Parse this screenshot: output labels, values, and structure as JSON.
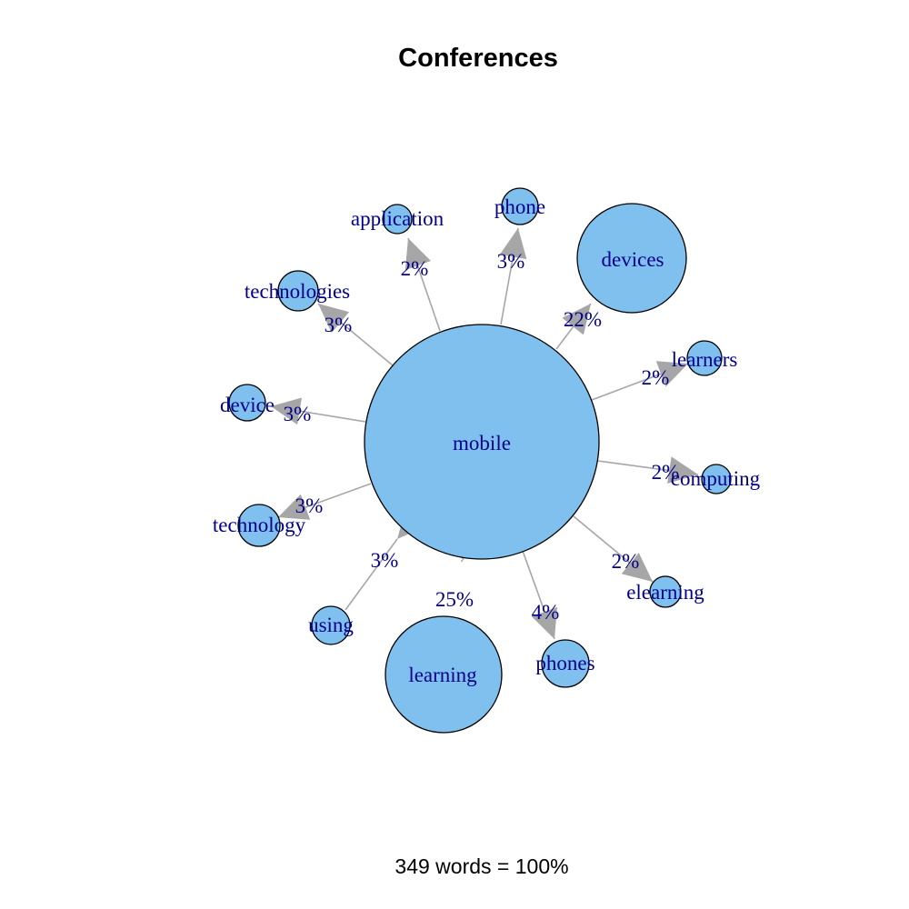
{
  "title": "Conferences",
  "footer": "349 words = 100%",
  "colors": {
    "node_fill": "#80c0ee",
    "node_stroke": "#000000",
    "edge": "#a6a6a6",
    "label": "#00008b"
  },
  "center": {
    "id": "mobile",
    "label": "mobile"
  },
  "nodes": [
    {
      "id": "application",
      "label": "application",
      "percent": "2%"
    },
    {
      "id": "phone",
      "label": "phone",
      "percent": "3%"
    },
    {
      "id": "devices",
      "label": "devices",
      "percent": "22%"
    },
    {
      "id": "learners",
      "label": "learners",
      "percent": "2%"
    },
    {
      "id": "computing",
      "label": "computing",
      "percent": "2%"
    },
    {
      "id": "elearning",
      "label": "elearning",
      "percent": "2%"
    },
    {
      "id": "phones",
      "label": "phones",
      "percent": "4%"
    },
    {
      "id": "learning",
      "label": "learning",
      "percent": "25%"
    },
    {
      "id": "using",
      "label": "using",
      "percent": "3%"
    },
    {
      "id": "technology",
      "label": "technology",
      "percent": "3%"
    },
    {
      "id": "device",
      "label": "device",
      "percent": "3%"
    },
    {
      "id": "technologies",
      "label": "technologies",
      "percent": "3%"
    }
  ]
}
